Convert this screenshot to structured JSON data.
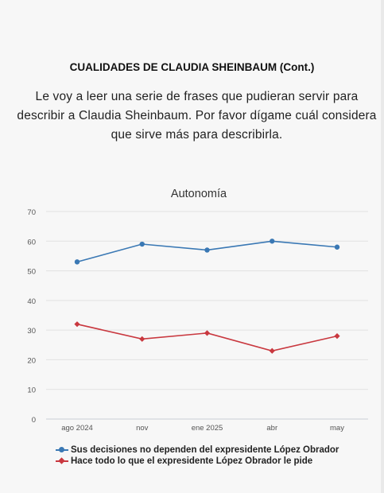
{
  "header": {
    "title": "CUALIDADES DE CLAUDIA SHEINBAUM (Cont.)",
    "intro_lines": [
      "Le voy a leer una serie de frases que pudieran servir para",
      "describir a Claudia Sheinbaum. Por favor dígame cuál considera",
      "que sirve más para describirla."
    ]
  },
  "chart_data": {
    "type": "line",
    "title": "Autonomía",
    "categories": [
      "ago 2024",
      "nov",
      "ene 2025",
      "abr",
      "may"
    ],
    "ylim": [
      0,
      70
    ],
    "yticks": [
      0,
      10,
      20,
      30,
      40,
      50,
      60,
      70
    ],
    "grid": true,
    "legend_position": "bottom",
    "series": [
      {
        "name": "Sus decisiones no dependen del expresidente López Obrador",
        "values": [
          53,
          59,
          57,
          60,
          58
        ],
        "color": "#3a78b4",
        "marker": "circle"
      },
      {
        "name": "Hace todo lo que el expresidente López Obrador le pide",
        "values": [
          32,
          27,
          29,
          23,
          28
        ],
        "color": "#c9383f",
        "marker": "diamond"
      }
    ]
  }
}
